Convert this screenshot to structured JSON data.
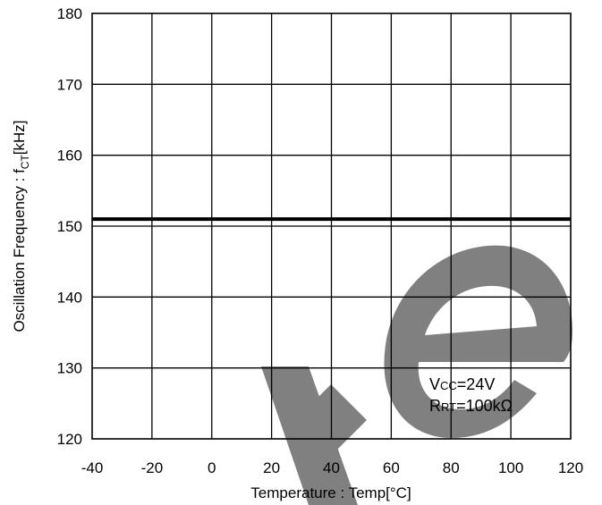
{
  "chart_data": {
    "type": "line",
    "xlabel": "Temperature : Temp[°C]",
    "ylabel": {
      "main": "Oscillation Frequency : f",
      "sub": "CT",
      "unit": "[kHz]"
    },
    "xlim": [
      -40,
      120
    ],
    "ylim": [
      120,
      180
    ],
    "xticks": [
      -40,
      -20,
      0,
      20,
      40,
      60,
      80,
      100,
      120
    ],
    "yticks": [
      120,
      130,
      140,
      150,
      160,
      170,
      180
    ],
    "grid": true,
    "series": [
      {
        "x": [
          -40,
          120
        ],
        "y": [
          151,
          151
        ]
      }
    ],
    "conditions": [
      {
        "main": "V",
        "sub": "CC",
        "rest": "=24V"
      },
      {
        "main": "R",
        "sub": "RT",
        "rest": "=100kΩ"
      }
    ],
    "watermark": {
      "text": "e",
      "color": "#808080"
    }
  }
}
